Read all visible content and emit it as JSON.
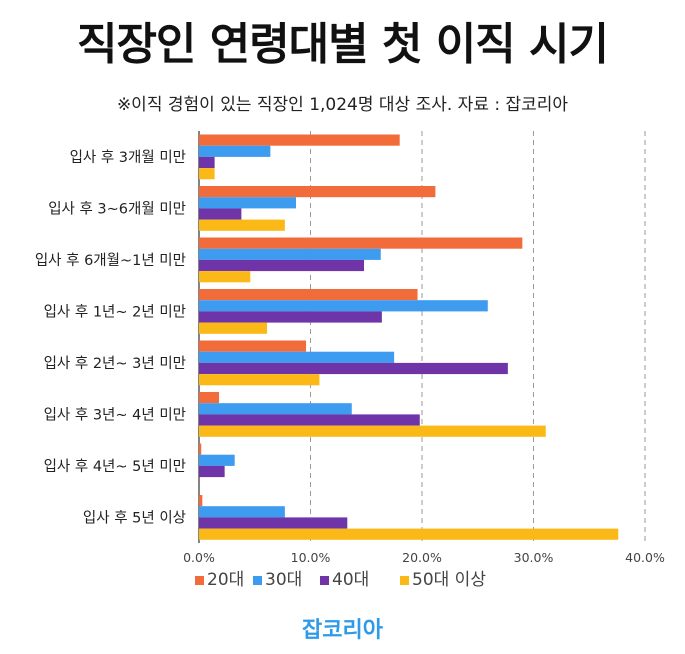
{
  "title": "직장인 연령대별 첫 이직 시기",
  "subtitle": "※이직 경험이 있는 직장인 1,024명 대상 조사. 자료 : 잡코리아",
  "source": "잡코리아",
  "chart_data": {
    "type": "bar",
    "orientation": "horizontal",
    "categories": [
      "입사 후 3개월 미만",
      "입사 후 3~6개월 미만",
      "입사 후 6개월~1년 미만",
      "입사 후 1년~ 2년 미만",
      "입사 후 2년~ 3년 미만",
      "입사 후 3년~ 4년 미만",
      "입사 후 4년~ 5년 미만",
      "입사 후 5년 이상"
    ],
    "series": [
      {
        "name": "20대",
        "color": "#f26b3a",
        "values": [
          18.0,
          21.2,
          29.0,
          19.6,
          9.6,
          1.8,
          0.2,
          0.3
        ]
      },
      {
        "name": "30대",
        "color": "#3d9bf0",
        "values": [
          6.4,
          8.7,
          16.3,
          25.9,
          17.5,
          13.7,
          3.2,
          7.7
        ]
      },
      {
        "name": "40대",
        "color": "#6e34a8",
        "values": [
          1.4,
          3.8,
          14.8,
          16.4,
          27.7,
          19.8,
          2.3,
          13.3
        ]
      },
      {
        "name": "50대 이상",
        "color": "#fbb917",
        "values": [
          1.4,
          7.7,
          4.6,
          6.1,
          10.8,
          31.1,
          0,
          37.6
        ]
      }
    ],
    "xlim": [
      0,
      40
    ],
    "xticks": [
      "0.0%",
      "10.0%",
      "20.0%",
      "30.0%",
      "40.0%"
    ],
    "grid": "dashed vertical",
    "legend": "bottom"
  }
}
